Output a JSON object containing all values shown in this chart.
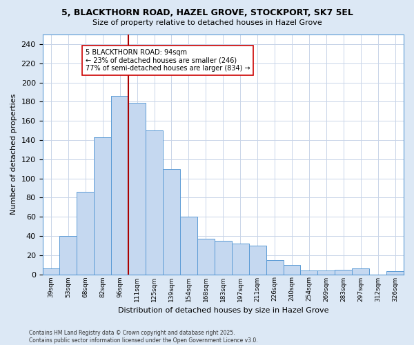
{
  "title1": "5, BLACKTHORN ROAD, HAZEL GROVE, STOCKPORT, SK7 5EL",
  "title2": "Size of property relative to detached houses in Hazel Grove",
  "xlabel": "Distribution of detached houses by size in Hazel Grove",
  "ylabel": "Number of detached properties",
  "categories": [
    "39sqm",
    "53sqm",
    "68sqm",
    "82sqm",
    "96sqm",
    "111sqm",
    "125sqm",
    "139sqm",
    "154sqm",
    "168sqm",
    "183sqm",
    "197sqm",
    "211sqm",
    "226sqm",
    "240sqm",
    "254sqm",
    "269sqm",
    "283sqm",
    "297sqm",
    "312sqm",
    "326sqm"
  ],
  "values": [
    6,
    40,
    86,
    143,
    186,
    179,
    150,
    110,
    60,
    37,
    35,
    32,
    30,
    15,
    10,
    4,
    4,
    5,
    6,
    0,
    3
  ],
  "bar_color": "#c5d8f0",
  "bar_edge_color": "#5b9bd5",
  "grid_color": "#c8d4e8",
  "plot_bg_color": "#ffffff",
  "outer_bg_color": "#dce8f5",
  "vline_x": 4.5,
  "vline_color": "#aa0000",
  "annotation_text": "5 BLACKTHORN ROAD: 94sqm\n← 23% of detached houses are smaller (246)\n77% of semi-detached houses are larger (834) →",
  "annotation_box_facecolor": "#ffffff",
  "annotation_box_edgecolor": "#cc0000",
  "ylim": [
    0,
    250
  ],
  "yticks": [
    0,
    20,
    40,
    60,
    80,
    100,
    120,
    140,
    160,
    180,
    200,
    220,
    240
  ],
  "footer": "Contains HM Land Registry data © Crown copyright and database right 2025.\nContains public sector information licensed under the Open Government Licence v3.0."
}
